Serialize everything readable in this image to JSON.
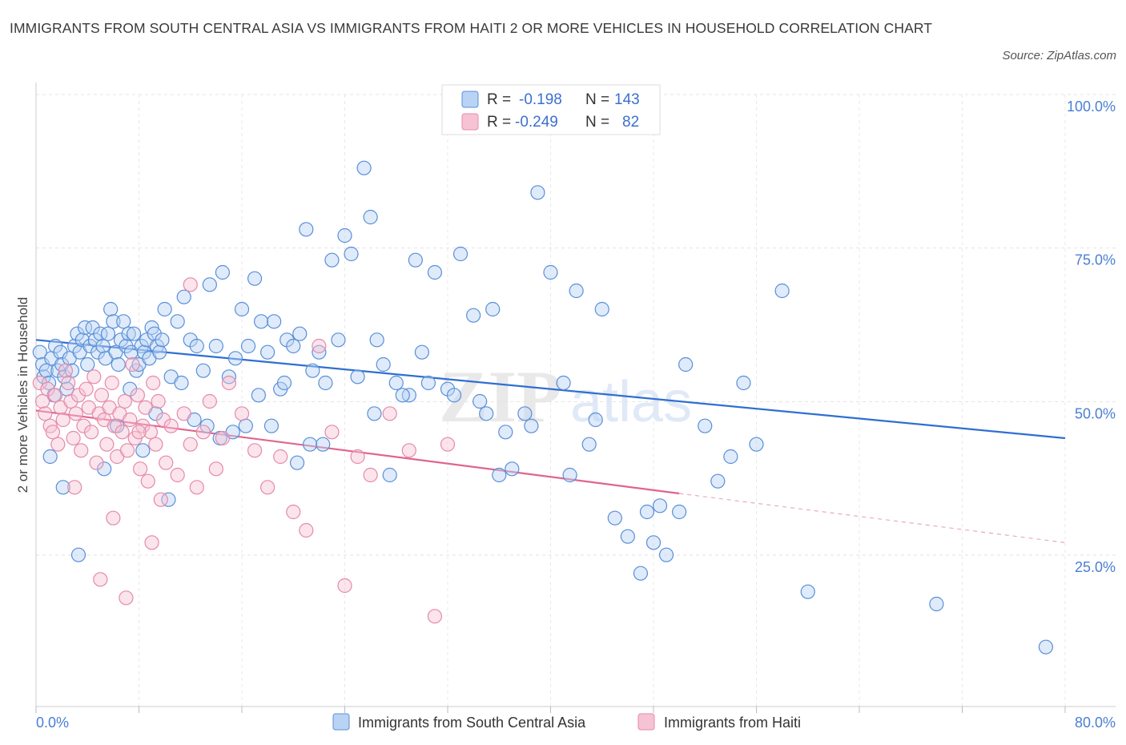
{
  "title": "IMMIGRANTS FROM SOUTH CENTRAL ASIA VS IMMIGRANTS FROM HAITI 2 OR MORE VEHICLES IN HOUSEHOLD CORRELATION CHART",
  "source": "Source: ZipAtlas.com",
  "watermark": {
    "zip": "ZIP",
    "atlas": "atlas"
  },
  "legend": {
    "rows": [
      {
        "r_label": "R =",
        "r_value": "-0.198",
        "n_label": "N =",
        "n_value": "143"
      },
      {
        "r_label": "R =",
        "r_value": "-0.249",
        "n_label": "N =",
        "n_value": "82"
      }
    ]
  },
  "colors": {
    "blue_fill": "#b9d3f5",
    "blue_stroke": "#5a8fd8",
    "blue_line": "#2f6fd1",
    "pink_fill": "#f6c3d4",
    "pink_stroke": "#e58aa8",
    "pink_line": "#e0648f",
    "accent_text": "#4a7fd4"
  },
  "chart_data": {
    "type": "scatter",
    "xlabel": "",
    "ylabel": "2 or more Vehicles in Household",
    "xlim": [
      0,
      80
    ],
    "ylim": [
      0,
      100
    ],
    "x_tick_labels": [
      "0.0%",
      "80.0%"
    ],
    "y_tick_labels": [
      "25.0%",
      "50.0%",
      "75.0%",
      "100.0%"
    ],
    "y_tick_values": [
      25,
      50,
      75,
      100
    ],
    "grid": true,
    "legend_position": "top-center",
    "series": [
      {
        "name": "Immigrants from South Central Asia",
        "color": "#5a8fd8",
        "R": -0.198,
        "N": 143,
        "trend": {
          "x0": 0,
          "y0": 62.0,
          "x1": 80,
          "y1": 46.0
        },
        "points": [
          [
            0.3,
            60
          ],
          [
            0.5,
            58
          ],
          [
            0.6,
            56
          ],
          [
            0.8,
            57
          ],
          [
            1.0,
            55
          ],
          [
            1.2,
            59
          ],
          [
            1.4,
            53
          ],
          [
            1.5,
            61
          ],
          [
            1.7,
            57
          ],
          [
            1.9,
            60
          ],
          [
            2.0,
            58
          ],
          [
            2.2,
            56
          ],
          [
            2.4,
            54
          ],
          [
            2.6,
            59
          ],
          [
            2.8,
            57
          ],
          [
            3.0,
            61
          ],
          [
            3.2,
            63
          ],
          [
            3.4,
            60
          ],
          [
            3.6,
            62
          ],
          [
            3.8,
            64
          ],
          [
            4.0,
            58
          ],
          [
            4.2,
            61
          ],
          [
            4.4,
            64
          ],
          [
            4.6,
            62
          ],
          [
            4.8,
            60
          ],
          [
            5.0,
            63
          ],
          [
            5.2,
            61
          ],
          [
            5.4,
            59
          ],
          [
            5.6,
            63
          ],
          [
            5.8,
            67
          ],
          [
            6.0,
            65
          ],
          [
            6.2,
            60
          ],
          [
            6.4,
            58
          ],
          [
            6.6,
            62
          ],
          [
            6.8,
            65
          ],
          [
            7.0,
            61
          ],
          [
            7.2,
            63
          ],
          [
            7.4,
            60
          ],
          [
            7.6,
            63
          ],
          [
            7.8,
            57
          ],
          [
            8.0,
            58
          ],
          [
            8.2,
            61
          ],
          [
            8.4,
            60
          ],
          [
            8.6,
            62
          ],
          [
            8.8,
            59
          ],
          [
            9.0,
            64
          ],
          [
            9.2,
            63
          ],
          [
            9.4,
            61
          ],
          [
            9.6,
            60
          ],
          [
            9.8,
            62
          ],
          [
            10.0,
            67
          ],
          [
            10.5,
            56
          ],
          [
            11,
            65
          ],
          [
            11.5,
            69
          ],
          [
            12,
            62
          ],
          [
            12.5,
            61
          ],
          [
            13,
            57
          ],
          [
            13.5,
            71
          ],
          [
            14,
            61
          ],
          [
            14.5,
            73
          ],
          [
            15,
            56
          ],
          [
            15.5,
            59
          ],
          [
            16,
            67
          ],
          [
            16.5,
            61
          ],
          [
            17,
            72
          ],
          [
            17.5,
            65
          ],
          [
            18,
            60
          ],
          [
            18.5,
            65
          ],
          [
            19,
            54
          ],
          [
            19.5,
            62
          ],
          [
            20,
            61
          ],
          [
            20.5,
            63
          ],
          [
            21,
            80
          ],
          [
            21.5,
            57
          ],
          [
            22,
            60
          ],
          [
            22.5,
            55
          ],
          [
            23,
            75
          ],
          [
            23.5,
            62
          ],
          [
            24,
            79
          ],
          [
            24.5,
            76
          ],
          [
            25,
            56
          ],
          [
            25.5,
            90
          ],
          [
            26,
            82
          ],
          [
            26.5,
            62
          ],
          [
            27,
            58
          ],
          [
            27.5,
            40
          ],
          [
            28,
            55
          ],
          [
            29,
            53
          ],
          [
            29.5,
            75
          ],
          [
            30,
            60
          ],
          [
            30.5,
            55
          ],
          [
            31,
            73
          ],
          [
            32,
            54
          ],
          [
            33,
            76
          ],
          [
            34,
            66
          ],
          [
            35,
            50
          ],
          [
            35.5,
            67
          ],
          [
            36,
            40
          ],
          [
            37,
            41
          ],
          [
            38,
            50
          ],
          [
            38.5,
            48
          ],
          [
            39,
            86
          ],
          [
            40,
            73
          ],
          [
            41,
            55
          ],
          [
            42,
            70
          ],
          [
            43,
            45
          ],
          [
            44,
            67
          ],
          [
            45,
            33
          ],
          [
            46,
            30
          ],
          [
            47,
            24
          ],
          [
            48,
            29
          ],
          [
            48.5,
            35
          ],
          [
            49,
            27
          ],
          [
            50,
            34
          ],
          [
            52,
            48
          ],
          [
            53,
            39
          ],
          [
            54,
            43
          ],
          [
            56,
            45
          ],
          [
            58,
            70
          ],
          [
            60,
            21
          ],
          [
            1.1,
            43
          ],
          [
            2.1,
            38
          ],
          [
            3.3,
            27
          ],
          [
            5.3,
            41
          ],
          [
            6.3,
            48
          ],
          [
            7.3,
            54
          ],
          [
            8.3,
            44
          ],
          [
            9.3,
            50
          ],
          [
            10.3,
            36
          ],
          [
            11.3,
            55
          ],
          [
            12.3,
            49
          ],
          [
            13.3,
            48
          ],
          [
            14.3,
            46
          ],
          [
            15.3,
            47
          ],
          [
            16.3,
            48
          ],
          [
            17.3,
            53
          ],
          [
            18.3,
            48
          ],
          [
            19.3,
            55
          ],
          [
            20.3,
            42
          ],
          [
            21.3,
            45
          ],
          [
            22.3,
            45
          ],
          [
            26.3,
            50
          ],
          [
            28.5,
            53
          ],
          [
            32.5,
            53
          ],
          [
            34.5,
            52
          ],
          [
            36.5,
            47
          ],
          [
            41.5,
            40
          ],
          [
            43.5,
            49
          ],
          [
            47.5,
            34
          ],
          [
            50.5,
            58
          ],
          [
            55,
            55
          ],
          [
            70,
            19
          ],
          [
            78.5,
            12
          ]
        ]
      },
      {
        "name": "Immigrants from Haiti",
        "color": "#e58aa8",
        "R": -0.249,
        "N": 82,
        "trend": {
          "x0": 0,
          "y0": 50.5,
          "x1": 50,
          "y1": 37.0,
          "x_dash_end": 80,
          "y_dash_end": 29.0
        },
        "points": [
          [
            0.3,
            55
          ],
          [
            0.5,
            52
          ],
          [
            0.7,
            50
          ],
          [
            0.9,
            54
          ],
          [
            1.1,
            48
          ],
          [
            1.3,
            47
          ],
          [
            1.5,
            53
          ],
          [
            1.7,
            45
          ],
          [
            1.9,
            51
          ],
          [
            2.1,
            49
          ],
          [
            2.3,
            57
          ],
          [
            2.5,
            55
          ],
          [
            2.7,
            52
          ],
          [
            2.9,
            46
          ],
          [
            3.1,
            50
          ],
          [
            3.3,
            53
          ],
          [
            3.5,
            44
          ],
          [
            3.7,
            48
          ],
          [
            3.9,
            54
          ],
          [
            4.1,
            51
          ],
          [
            4.3,
            47
          ],
          [
            4.5,
            56
          ],
          [
            4.7,
            42
          ],
          [
            4.9,
            50
          ],
          [
            5.1,
            53
          ],
          [
            5.3,
            49
          ],
          [
            5.5,
            45
          ],
          [
            5.7,
            51
          ],
          [
            5.9,
            55
          ],
          [
            6.1,
            48
          ],
          [
            6.3,
            43
          ],
          [
            6.5,
            50
          ],
          [
            6.7,
            47
          ],
          [
            6.9,
            52
          ],
          [
            7.1,
            44
          ],
          [
            7.3,
            49
          ],
          [
            7.5,
            58
          ],
          [
            7.7,
            46
          ],
          [
            7.9,
            53
          ],
          [
            8.1,
            41
          ],
          [
            8.3,
            48
          ],
          [
            8.5,
            51
          ],
          [
            8.7,
            39
          ],
          [
            8.9,
            47
          ],
          [
            9.1,
            55
          ],
          [
            9.3,
            45
          ],
          [
            9.5,
            52
          ],
          [
            9.7,
            36
          ],
          [
            9.9,
            49
          ],
          [
            10.1,
            42
          ],
          [
            10.5,
            48
          ],
          [
            11.0,
            40
          ],
          [
            11.5,
            50
          ],
          [
            12.0,
            45
          ],
          [
            12.5,
            38
          ],
          [
            13.0,
            47
          ],
          [
            13.5,
            52
          ],
          [
            14.0,
            41
          ],
          [
            14.5,
            46
          ],
          [
            15.0,
            55
          ],
          [
            16.0,
            50
          ],
          [
            17.0,
            44
          ],
          [
            18.0,
            38
          ],
          [
            19.0,
            43
          ],
          [
            20.0,
            34
          ],
          [
            21.0,
            31
          ],
          [
            22.0,
            61
          ],
          [
            23.0,
            47
          ],
          [
            24.0,
            22
          ],
          [
            25.0,
            43
          ],
          [
            26.0,
            40
          ],
          [
            27.5,
            50
          ],
          [
            29.0,
            44
          ],
          [
            31.0,
            17
          ],
          [
            32.0,
            45
          ],
          [
            5.0,
            23
          ],
          [
            3.0,
            38
          ],
          [
            6.0,
            33
          ],
          [
            7.0,
            20
          ],
          [
            9.0,
            29
          ],
          [
            12.0,
            71
          ],
          [
            8.0,
            47
          ]
        ]
      }
    ]
  },
  "bottom_legend": [
    {
      "label": "Immigrants from South Central Asia"
    },
    {
      "label": "Immigrants from Haiti"
    }
  ]
}
